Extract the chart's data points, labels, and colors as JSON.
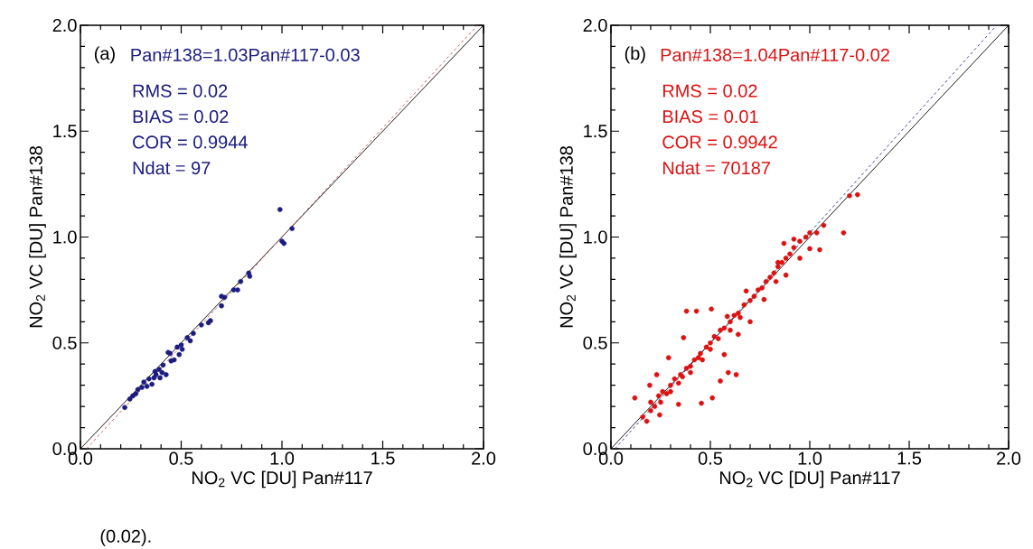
{
  "chart_data": [
    {
      "type": "scatter",
      "xlabel": "NO$_{2}$ VC [DU] Pan#117",
      "ylabel": "NO$_{2}$ VC [DU] Pan#138",
      "xlim": [
        0,
        2
      ],
      "ylim": [
        0,
        2
      ],
      "xticks": [
        {
          "value": 0,
          "label": "0.0"
        },
        {
          "value": 0.1,
          "label": null
        },
        {
          "value": 0.2,
          "label": null
        },
        {
          "value": 0.3,
          "label": null
        },
        {
          "value": 0.4,
          "label": null
        },
        {
          "value": 0.5,
          "label": "0.5"
        },
        {
          "value": 0.6,
          "label": null
        },
        {
          "value": 0.7,
          "label": null
        },
        {
          "value": 0.8,
          "label": null
        },
        {
          "value": 0.9,
          "label": null
        },
        {
          "value": 1,
          "label": "1.0"
        },
        {
          "value": 1.1,
          "label": null
        },
        {
          "value": 1.2,
          "label": null
        },
        {
          "value": 1.3,
          "label": null
        },
        {
          "value": 1.4,
          "label": null
        },
        {
          "value": 1.5,
          "label": "1.5"
        },
        {
          "value": 1.6,
          "label": null
        },
        {
          "value": 1.7,
          "label": null
        },
        {
          "value": 1.8,
          "label": null
        },
        {
          "value": 1.9,
          "label": null
        },
        {
          "value": 2,
          "label": "2.0"
        }
      ],
      "yticks": [
        {
          "value": 0,
          "label": "0.0"
        },
        {
          "value": 0.1,
          "label": null
        },
        {
          "value": 0.2,
          "label": null
        },
        {
          "value": 0.3,
          "label": null
        },
        {
          "value": 0.4,
          "label": null
        },
        {
          "value": 0.5,
          "label": "0.5"
        },
        {
          "value": 0.6,
          "label": null
        },
        {
          "value": 0.7,
          "label": null
        },
        {
          "value": 0.8,
          "label": null
        },
        {
          "value": 0.9,
          "label": null
        },
        {
          "value": 1,
          "label": "1.0"
        },
        {
          "value": 1.1,
          "label": null
        },
        {
          "value": 1.2,
          "label": null
        },
        {
          "value": 1.3,
          "label": null
        },
        {
          "value": 1.4,
          "label": null
        },
        {
          "value": 1.5,
          "label": "1.5"
        },
        {
          "value": 1.6,
          "label": null
        },
        {
          "value": 1.7,
          "label": null
        },
        {
          "value": 1.8,
          "label": null
        },
        {
          "value": 1.9,
          "label": null
        },
        {
          "value": 2,
          "label": "2.0"
        }
      ],
      "annotations": [
        "(a)",
        "Pan#138=1.03Pan#117-0.03",
        "RMS = 0.02",
        "BIAS = 0.02",
        "COR = 0.9944",
        "Ndat = 97",
        "(0.02)."
      ],
      "series": [
        {
          "marker": "circle",
          "color": "#1c1c80",
          "x": [
            0.22,
            0.245,
            0.26,
            0.275,
            0.285,
            0.305,
            0.315,
            0.33,
            0.34,
            0.355,
            0.365,
            0.37,
            0.375,
            0.39,
            0.395,
            0.405,
            0.41,
            0.425,
            0.435,
            0.445,
            0.45,
            0.465,
            0.48,
            0.49,
            0.5,
            0.505,
            0.53,
            0.545,
            0.56,
            0.6,
            0.635,
            0.645,
            0.7,
            0.7,
            0.715,
            0.76,
            0.78,
            0.795,
            0.835,
            0.84,
            0.99,
            1.0,
            1.01,
            1.05
          ],
          "values": [
            0.195,
            0.235,
            0.25,
            0.26,
            0.28,
            0.29,
            0.315,
            0.295,
            0.33,
            0.305,
            0.335,
            0.365,
            0.35,
            0.375,
            0.335,
            0.36,
            0.395,
            0.35,
            0.455,
            0.45,
            0.415,
            0.42,
            0.48,
            0.445,
            0.49,
            0.47,
            0.525,
            0.51,
            0.545,
            0.585,
            0.595,
            0.605,
            0.72,
            0.675,
            0.715,
            0.75,
            0.75,
            0.79,
            0.83,
            0.815,
            1.13,
            0.98,
            0.97,
            1.04
          ]
        },
        {
          "type": "line",
          "marker": "none",
          "line_style": "solid",
          "color": "#000000",
          "x": [
            0,
            2
          ],
          "values": [
            0,
            2
          ]
        },
        {
          "type": "line",
          "marker": "none",
          "line_style": "dashed",
          "color": "#c0504d",
          "x": [
            0.03,
            1.97
          ],
          "values": [
            0,
            2
          ]
        }
      ]
    },
    {
      "type": "scatter",
      "xlabel": "NO$_{2}$ VC [DU] Pan#117",
      "ylabel": "NO$_{2}$ VC [DU] Pan#138",
      "xlim": [
        0,
        2
      ],
      "ylim": [
        0,
        2
      ],
      "xticks": [
        {
          "value": 0,
          "label": "0.0"
        },
        {
          "value": 0.1,
          "label": null
        },
        {
          "value": 0.2,
          "label": null
        },
        {
          "value": 0.3,
          "label": null
        },
        {
          "value": 0.4,
          "label": null
        },
        {
          "value": 0.5,
          "label": "0.5"
        },
        {
          "value": 0.6,
          "label": null
        },
        {
          "value": 0.7,
          "label": null
        },
        {
          "value": 0.8,
          "label": null
        },
        {
          "value": 0.9,
          "label": null
        },
        {
          "value": 1,
          "label": "1.0"
        },
        {
          "value": 1.1,
          "label": null
        },
        {
          "value": 1.2,
          "label": null
        },
        {
          "value": 1.3,
          "label": null
        },
        {
          "value": 1.4,
          "label": null
        },
        {
          "value": 1.5,
          "label": "1.5"
        },
        {
          "value": 1.6,
          "label": null
        },
        {
          "value": 1.7,
          "label": null
        },
        {
          "value": 1.8,
          "label": null
        },
        {
          "value": 1.9,
          "label": null
        },
        {
          "value": 2,
          "label": "2.0"
        }
      ],
      "yticks": [
        {
          "value": 0,
          "label": "0.0"
        },
        {
          "value": 0.1,
          "label": null
        },
        {
          "value": 0.2,
          "label": null
        },
        {
          "value": 0.3,
          "label": null
        },
        {
          "value": 0.4,
          "label": null
        },
        {
          "value": 0.5,
          "label": "0.5"
        },
        {
          "value": 0.6,
          "label": null
        },
        {
          "value": 0.7,
          "label": null
        },
        {
          "value": 0.8,
          "label": null
        },
        {
          "value": 0.9,
          "label": null
        },
        {
          "value": 1,
          "label": "1.0"
        },
        {
          "value": 1.1,
          "label": null
        },
        {
          "value": 1.2,
          "label": null
        },
        {
          "value": 1.3,
          "label": null
        },
        {
          "value": 1.4,
          "label": null
        },
        {
          "value": 1.5,
          "label": "1.5"
        },
        {
          "value": 1.6,
          "label": null
        },
        {
          "value": 1.7,
          "label": null
        },
        {
          "value": 1.8,
          "label": null
        },
        {
          "value": 1.9,
          "label": null
        },
        {
          "value": 2,
          "label": "2.0"
        }
      ],
      "annotations": [
        "(b)",
        "Pan#138=1.04Pan#117-0.02",
        "RMS = 0.02",
        "BIAS = 0.01",
        "COR = 0.9942",
        "Ndat = 70187"
      ],
      "series": [
        {
          "marker": "circle",
          "color": "#dd1111",
          "x": [
            0.16,
            0.18,
            0.2,
            0.2,
            0.22,
            0.24,
            0.25,
            0.26,
            0.28,
            0.3,
            0.3,
            0.32,
            0.34,
            0.35,
            0.36,
            0.38,
            0.4,
            0.4,
            0.42,
            0.44,
            0.45,
            0.46,
            0.48,
            0.5,
            0.5,
            0.52,
            0.54,
            0.55,
            0.57,
            0.6,
            0.6,
            0.62,
            0.64,
            0.65,
            0.67,
            0.7,
            0.72,
            0.74,
            0.76,
            0.78,
            0.8,
            0.82,
            0.84,
            0.86,
            0.88,
            0.9,
            0.92,
            0.95,
            0.98,
            1.0,
            0.12,
            0.195,
            0.245,
            0.34,
            0.455,
            0.51,
            0.55,
            0.59,
            0.63,
            0.57,
            0.64,
            0.7,
            0.77,
            0.83,
            0.88,
            0.38,
            0.43,
            0.505,
            0.365,
            0.29,
            0.23,
            0.68,
            0.585,
            0.84,
            0.92,
            1.035,
            1.17,
            1.07,
            1.2,
            1.24,
            1.0,
            1.05,
            0.87,
            0.95
          ],
          "values": [
            0.15,
            0.13,
            0.18,
            0.22,
            0.2,
            0.25,
            0.22,
            0.27,
            0.26,
            0.3,
            0.27,
            0.33,
            0.31,
            0.35,
            0.34,
            0.38,
            0.39,
            0.36,
            0.42,
            0.43,
            0.45,
            0.42,
            0.48,
            0.5,
            0.47,
            0.53,
            0.52,
            0.56,
            0.57,
            0.6,
            0.56,
            0.63,
            0.64,
            0.62,
            0.68,
            0.7,
            0.72,
            0.75,
            0.76,
            0.79,
            0.81,
            0.83,
            0.86,
            0.88,
            0.9,
            0.92,
            0.95,
            0.98,
            1.0,
            1.02,
            0.24,
            0.3,
            0.16,
            0.21,
            0.215,
            0.24,
            0.32,
            0.36,
            0.35,
            0.445,
            0.54,
            0.6,
            0.705,
            0.79,
            0.82,
            0.65,
            0.65,
            0.66,
            0.525,
            0.43,
            0.35,
            0.745,
            0.625,
            0.88,
            0.99,
            1.02,
            1.02,
            1.055,
            1.195,
            1.2,
            0.945,
            0.94,
            0.97,
            0.9
          ]
        },
        {
          "type": "line",
          "marker": "none",
          "line_style": "solid",
          "color": "#000000",
          "x": [
            0,
            2
          ],
          "values": [
            0,
            2
          ]
        },
        {
          "type": "line",
          "marker": "none",
          "line_style": "dashed",
          "color": "#2a2a80",
          "x": [
            0.02,
            1.94
          ],
          "values": [
            0,
            2
          ]
        }
      ]
    }
  ]
}
